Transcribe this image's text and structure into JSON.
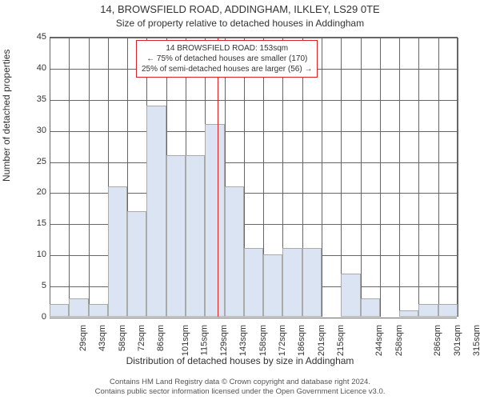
{
  "title": "14, BROWSFIELD ROAD, ADDINGHAM, ILKLEY, LS29 0TE",
  "subtitle": "Size of property relative to detached houses in Addingham",
  "y_axis_label": "Number of detached properties",
  "x_axis_label": "Distribution of detached houses by size in Addingham",
  "footer_line1": "Contains HM Land Registry data © Crown copyright and database right 2024.",
  "footer_line2": "Contains public sector information licensed under the Open Government Licence v3.0.",
  "annotation": {
    "line1": "14 BROWSFIELD ROAD: 153sqm",
    "line2": "← 75% of detached houses are smaller (170)",
    "line3": "25% of semi-detached houses are larger (56) →"
  },
  "chart": {
    "type": "histogram",
    "background_color": "#ffffff",
    "grid_color": "#666666",
    "bar_color": "#dbe4f3",
    "bar_border_color": "#aaaaaa",
    "marker_color": "#dd2222",
    "ylim": [
      0,
      45
    ],
    "yticks": [
      0,
      5,
      10,
      15,
      20,
      25,
      30,
      35,
      40,
      45
    ],
    "x_categories": [
      "29sqm",
      "43sqm",
      "58sqm",
      "72sqm",
      "86sqm",
      "101sqm",
      "115sqm",
      "129sqm",
      "143sqm",
      "158sqm",
      "172sqm",
      "186sqm",
      "201sqm",
      "215sqm",
      "",
      "244sqm",
      "258sqm",
      "",
      "286sqm",
      "301sqm",
      "315sqm"
    ],
    "values": [
      2,
      3,
      2,
      21,
      17,
      34,
      26,
      26,
      31,
      21,
      11,
      10,
      11,
      11,
      0,
      7,
      3,
      0,
      1,
      2,
      2
    ],
    "marker_x_index": 8.65,
    "title_fontsize": 13,
    "subtitle_fontsize": 12,
    "label_fontsize": 12,
    "tick_fontsize": 11,
    "annotation_fontsize": 10,
    "footer_fontsize": 9.5
  }
}
